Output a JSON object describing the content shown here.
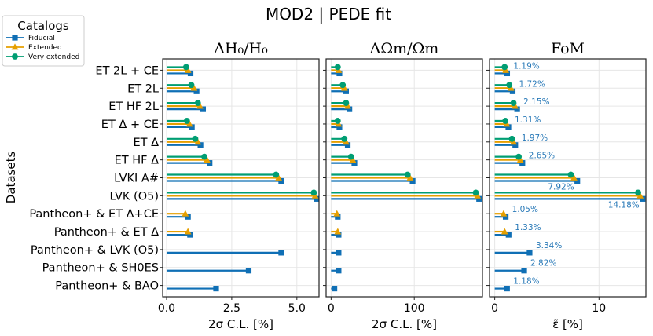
{
  "title": "MOD2 | PEDE fit",
  "y_axis_label": "Datasets",
  "legend": {
    "title": "Catalogs",
    "entries": [
      {
        "name": "Fiducial",
        "color": "#0f6fb5",
        "marker": "square"
      },
      {
        "name": "Extended",
        "color": "#e69f00",
        "marker": "triangle"
      },
      {
        "name": "Very extended",
        "color": "#009e73",
        "marker": "circle"
      }
    ]
  },
  "chart_data": {
    "type": "bar",
    "orientation": "horizontal",
    "categories": [
      "ET 2L + CE",
      "ET 2L",
      "ET HF 2L",
      "ET Δ + CE",
      "ET Δ",
      "ET HF Δ",
      "LVKI A#",
      "LVK (O5)",
      "Pantheon+ & ET Δ+CE",
      "Pantheon+ & ET Δ",
      "Pantheon+ & LVK (O5)",
      "Pantheon+ & SH0ES",
      "Pantheon+ & BAO"
    ],
    "panels": [
      {
        "title": "ΔH₀/H₀",
        "xlabel": "2σ C.L. [%]",
        "xlim": [
          -0.15,
          5.85
        ],
        "xticks": [
          0,
          2.5,
          5
        ],
        "xtick_labels": [
          "0.0",
          "2.5",
          "5.0"
        ],
        "series": [
          {
            "name": "Fiducial",
            "values": [
              0.92,
              1.15,
              1.4,
              0.97,
              1.3,
              1.65,
              4.4,
              5.75,
              0.82,
              0.9,
              4.4,
              3.15,
              1.9
            ]
          },
          {
            "name": "Extended",
            "values": [
              0.82,
              1.05,
              1.28,
              0.88,
              1.2,
              1.55,
              4.3,
              5.7,
              0.72,
              0.82,
              null,
              null,
              null
            ]
          },
          {
            "name": "Very extended",
            "values": [
              0.75,
              0.95,
              1.2,
              0.78,
              1.1,
              1.45,
              4.2,
              5.65,
              null,
              null,
              null,
              null,
              null
            ]
          }
        ]
      },
      {
        "title": "ΔΩm/Ωm",
        "xlabel": "2σ C.L. [%]",
        "xlim": [
          -6,
          182
        ],
        "xticks": [
          0,
          100
        ],
        "xtick_labels": [
          "0",
          "100"
        ],
        "series": [
          {
            "name": "Fiducial",
            "values": [
              10,
              18,
              22,
              10,
              20,
              28,
              98,
              178,
              8,
              9,
              9,
              9,
              4
            ]
          },
          {
            "name": "Extended",
            "values": [
              9,
              16,
              20,
              9,
              18,
              26,
              95,
              176,
              7,
              8,
              null,
              null,
              null
            ]
          },
          {
            "name": "Very extended",
            "values": [
              8,
              14,
              18,
              8,
              16,
              24,
              92,
              174,
              null,
              null,
              null,
              null,
              null
            ]
          }
        ]
      },
      {
        "title": "FoM",
        "xlabel": "ε̃ [%]",
        "xlim": [
          -0.5,
          14.5
        ],
        "xticks": [
          0,
          10
        ],
        "xtick_labels": [
          "0",
          "10"
        ],
        "annotations": [
          "1.19%",
          "1.72%",
          "2.15%",
          "1.31%",
          "1.97%",
          "2.65%",
          "7.92%",
          "14.18%",
          "1.05%",
          "1.33%",
          "3.34%",
          "2.82%",
          "1.18%"
        ],
        "series": [
          {
            "name": "Fiducial",
            "values": [
              1.19,
              1.72,
              2.15,
              1.31,
              1.97,
              2.65,
              7.92,
              14.18,
              1.05,
              1.33,
              3.34,
              2.82,
              1.18
            ]
          },
          {
            "name": "Extended",
            "values": [
              1.05,
              1.55,
              1.95,
              1.15,
              1.8,
              2.45,
              7.6,
              13.95,
              0.85,
              0.95,
              null,
              null,
              null
            ]
          },
          {
            "name": "Very extended",
            "values": [
              0.95,
              1.4,
              1.8,
              1.02,
              1.65,
              2.3,
              7.3,
              13.75,
              null,
              null,
              null,
              null,
              null
            ]
          }
        ]
      }
    ]
  }
}
